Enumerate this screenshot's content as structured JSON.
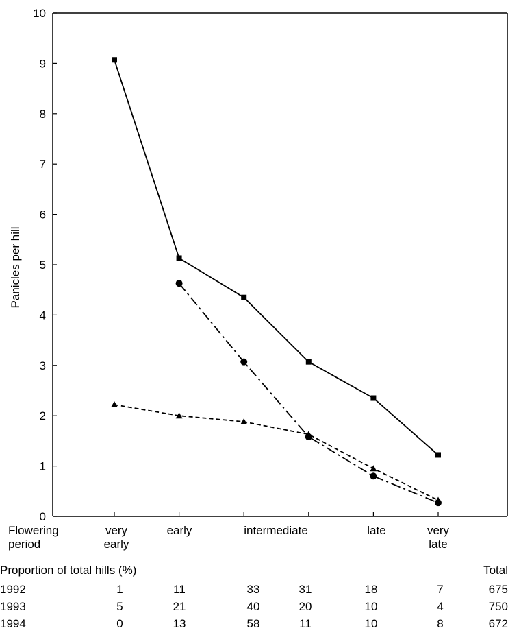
{
  "chart_data": {
    "type": "line",
    "title": "",
    "ylabel": "Panicles per hill",
    "xlabel": "",
    "ylim": [
      0,
      10
    ],
    "yticks": [
      "0",
      "1",
      "2",
      "3",
      "4",
      "5",
      "6",
      "7",
      "8",
      "9",
      "10"
    ],
    "x_positions": [
      1,
      2,
      3,
      4,
      5,
      6
    ],
    "series": [
      {
        "style": "solid",
        "marker": "square",
        "x": [
          1,
          2,
          3,
          4,
          5,
          6
        ],
        "values": [
          9.07,
          5.13,
          4.35,
          3.07,
          2.35,
          1.22
        ]
      },
      {
        "style": "dash-dot",
        "marker": "circle",
        "x": [
          2,
          3,
          4,
          5,
          6
        ],
        "values": [
          4.63,
          3.07,
          1.58,
          0.8,
          0.27
        ]
      },
      {
        "style": "dashed",
        "marker": "triangle",
        "x": [
          1,
          2,
          3,
          4,
          5,
          6
        ],
        "values": [
          2.22,
          2.0,
          1.88,
          1.63,
          0.95,
          0.32
        ]
      }
    ],
    "grid": false
  },
  "flowering": {
    "label_line1": "Flowering",
    "label_line2": "period",
    "categories": [
      {
        "line1": "very",
        "line2": "early"
      },
      {
        "line1": "early",
        "line2": ""
      },
      {
        "line1": "intermediate",
        "line2": ""
      },
      {
        "line1": "late",
        "line2": ""
      },
      {
        "line1": "very",
        "line2": "late"
      }
    ]
  },
  "table": {
    "title": "Proportion of total hills (%)",
    "total_header": "Total",
    "rows": [
      {
        "year": "1992",
        "values": [
          "1",
          "11",
          "33",
          "31",
          "18",
          "7"
        ],
        "total": "675"
      },
      {
        "year": "1993",
        "values": [
          "5",
          "21",
          "40",
          "20",
          "10",
          "4"
        ],
        "total": "750"
      },
      {
        "year": "1994",
        "values": [
          "0",
          "13",
          "58",
          "11",
          "10",
          "8"
        ],
        "total": "672"
      }
    ]
  }
}
